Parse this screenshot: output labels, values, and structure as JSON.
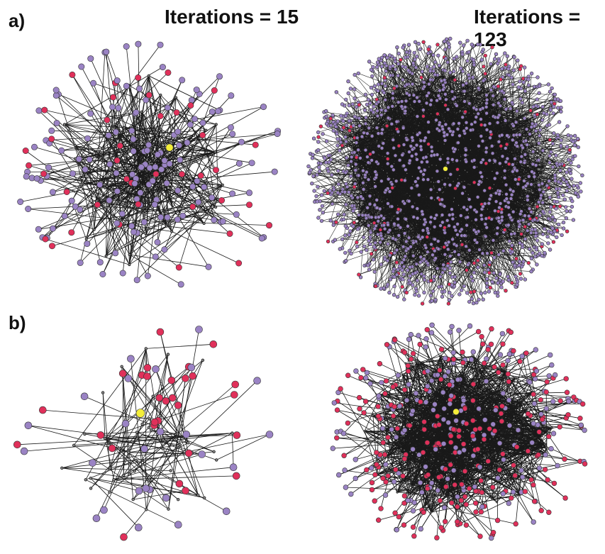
{
  "labels": {
    "panel_a": "a)",
    "panel_b": "b)",
    "iterations_left": "Iterations = 15",
    "iterations_right": "Iterations = 123"
  },
  "colors": {
    "purple_node": "#9a83c4",
    "red_node": "#e0305a",
    "yellow_node": "#f4ee3a",
    "edge": "#1a1a1a",
    "hub_node": "#8a8a8a"
  },
  "networks": [
    {
      "id": "a-iter15",
      "panel": "a",
      "iterations": 15,
      "density": "sparse-medium",
      "node_colors": [
        "purple",
        "red",
        "yellow"
      ]
    },
    {
      "id": "a-iter123",
      "panel": "a",
      "iterations": 123,
      "density": "dense",
      "node_colors": [
        "purple",
        "red",
        "yellow"
      ]
    },
    {
      "id": "b-iter15",
      "panel": "b",
      "iterations": 15,
      "density": "sparse",
      "node_colors": [
        "red",
        "purple",
        "yellow"
      ]
    },
    {
      "id": "b-iter123",
      "panel": "b",
      "iterations": 123,
      "density": "medium-dense",
      "node_colors": [
        "red",
        "purple",
        "yellow"
      ]
    }
  ]
}
